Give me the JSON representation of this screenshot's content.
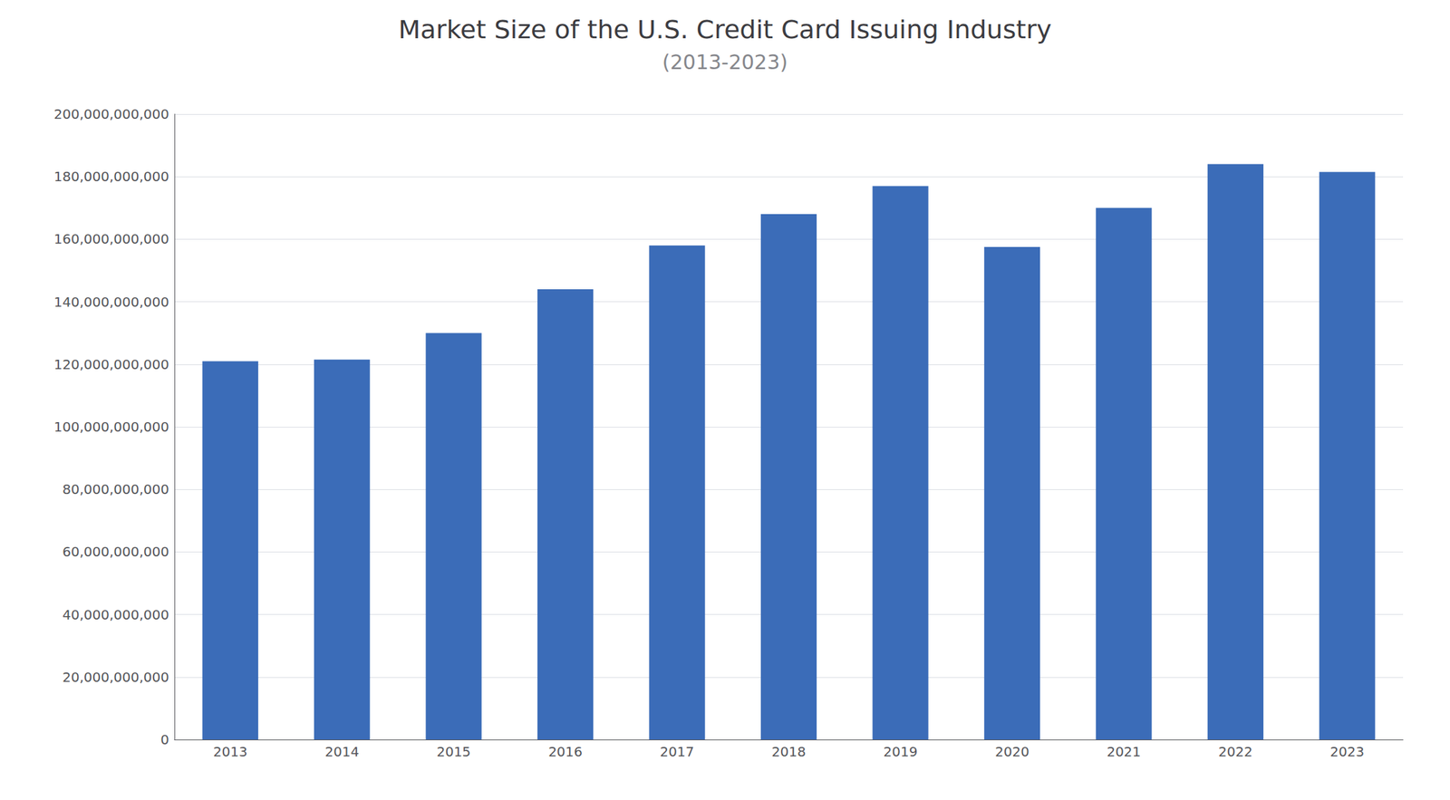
{
  "chart_data": {
    "type": "bar",
    "title": "Market Size of the U.S. Credit Card Issuing Industry",
    "subtitle": "(2013-2023)",
    "categories": [
      "2013",
      "2014",
      "2015",
      "2016",
      "2017",
      "2018",
      "2019",
      "2020",
      "2021",
      "2022",
      "2023"
    ],
    "values": [
      121000000000,
      121500000000,
      130000000000,
      144000000000,
      158000000000,
      168000000000,
      177000000000,
      157500000000,
      170000000000,
      184000000000,
      181500000000
    ],
    "color": "#3B6CB8",
    "ylim": [
      0,
      200000000000
    ],
    "yticks": [
      0,
      {
        "value": 20000000000,
        "label": "20,000,000,000"
      },
      {
        "value": 40000000000,
        "label": "40,000,000,000"
      },
      {
        "value": 60000000000,
        "label": "60,000,000,000"
      },
      {
        "value": 80000000000,
        "label": "80,000,000,000"
      },
      {
        "value": 100000000000,
        "label": "100,000,000,000"
      },
      {
        "value": 120000000000,
        "label": "120,000,000,000"
      },
      {
        "value": 140000000000,
        "label": "140,000,000,000"
      },
      {
        "value": 160000000000,
        "label": "160,000,000,000"
      },
      {
        "value": 180000000000,
        "label": "180,000,000,000"
      },
      {
        "value": 200000000000,
        "label": "200,000,000,000"
      }
    ],
    "grid": true
  }
}
